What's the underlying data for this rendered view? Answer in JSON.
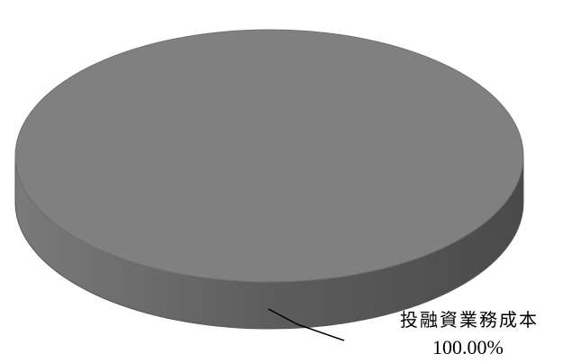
{
  "chart_data": {
    "type": "pie",
    "style": "3d",
    "slices": [
      {
        "label": "投融資業務成本",
        "value": 100.0,
        "value_label": "100.00%",
        "color": "#808080"
      }
    ]
  }
}
